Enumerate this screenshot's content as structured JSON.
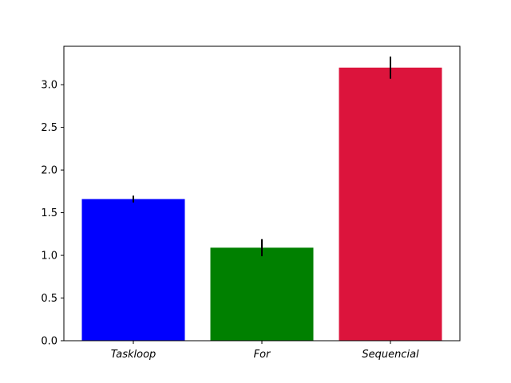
{
  "chart_data": {
    "type": "bar",
    "categories": [
      "Taskloop",
      "For",
      "Sequencial"
    ],
    "values": [
      1.66,
      1.09,
      3.2
    ],
    "errors": [
      0.04,
      0.1,
      0.13
    ],
    "colors": [
      "#0000ff",
      "#008000",
      "#dc143c"
    ],
    "title": "",
    "xlabel": "",
    "ylabel": "",
    "ylim": [
      0,
      3.45
    ],
    "yticks": [
      0.0,
      0.5,
      1.0,
      1.5,
      2.0,
      2.5,
      3.0
    ],
    "ytick_labels": [
      "0.0",
      "0.5",
      "1.0",
      "1.5",
      "2.0",
      "2.5",
      "3.0"
    ],
    "grid": false,
    "legend": "none"
  }
}
